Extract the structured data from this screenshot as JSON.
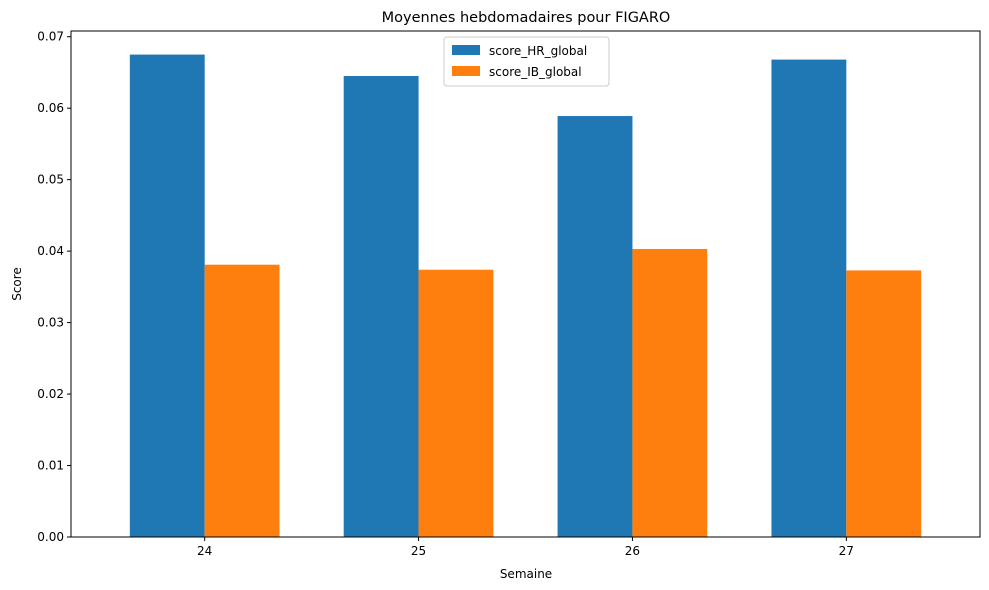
{
  "chart_data": {
    "type": "bar",
    "title": "Moyennes hebdomadaires pour FIGARO",
    "xlabel": "Semaine",
    "ylabel": "Score",
    "categories": [
      "24",
      "25",
      "26",
      "27"
    ],
    "series": [
      {
        "name": "score_HR_global",
        "color": "#1f77b4",
        "values": [
          0.0675,
          0.0645,
          0.0589,
          0.0668
        ]
      },
      {
        "name": "score_IB_global",
        "color": "#ff7f0e",
        "values": [
          0.0381,
          0.0374,
          0.0403,
          0.0373
        ]
      }
    ],
    "ylim": [
      0,
      0.0708
    ],
    "yticks": [
      "0.00",
      "0.01",
      "0.02",
      "0.03",
      "0.04",
      "0.05",
      "0.06",
      "0.07"
    ],
    "grid": false,
    "legend_position": "upper center"
  }
}
